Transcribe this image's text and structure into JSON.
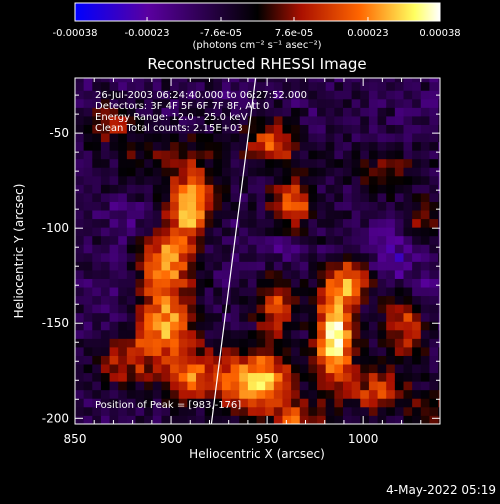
{
  "chart_data": {
    "type": "heatmap",
    "title": "Reconstructed RHESSI Image",
    "xlabel": "Heliocentric X (arcsec)",
    "ylabel": "Heliocentric Y (arcsec)",
    "xlim": [
      850,
      1040
    ],
    "ylim": [
      -203,
      -21
    ],
    "x_ticks": [
      850,
      900,
      950,
      1000
    ],
    "y_ticks": [
      -50,
      -100,
      -150,
      -200
    ],
    "colorbar": {
      "min": -0.00038,
      "max": 0.00038,
      "tick_values": [
        -0.00038,
        -0.00023,
        -7.6e-05,
        7.6e-05,
        0.00023,
        0.00038
      ],
      "tick_labels": [
        "-0.00038",
        "-0.00023",
        "-7.6e-05",
        "7.6e-05",
        "0.00023",
        "0.00038"
      ],
      "units_label": "(photons cm⁻² s⁻¹ asec⁻²)",
      "colors": [
        "#0000ff",
        "#5a00a0",
        "#000000",
        "#aa1000",
        "#ff6600",
        "#ffff60",
        "#ffffff"
      ]
    },
    "annotations": [
      "26-Jul-2003 06:24:40.000 to 06:27:52.000",
      "Detectors: 3F 4F 5F 6F 7F 8F, Att 0",
      "Energy Range: 12.0 - 25.0 keV",
      "Clean    Total counts: 2.15E+03"
    ],
    "peak_label": "Position of Peak = [983,-176]",
    "peak": [
      983,
      -176
    ],
    "limb_line": [
      [
        921,
        -203
      ],
      [
        944,
        -21
      ]
    ],
    "sources": [
      {
        "x": 900,
        "y": -62,
        "sx": 22,
        "sy": 12,
        "a": 0.3
      },
      {
        "x": 910,
        "y": -88,
        "sx": 8,
        "sy": 11,
        "a": 0.85
      },
      {
        "x": 898,
        "y": -115,
        "sx": 10,
        "sy": 12,
        "a": 0.7
      },
      {
        "x": 895,
        "y": -150,
        "sx": 13,
        "sy": 15,
        "a": 0.75
      },
      {
        "x": 912,
        "y": -180,
        "sx": 12,
        "sy": 10,
        "a": 0.55
      },
      {
        "x": 875,
        "y": -170,
        "sx": 10,
        "sy": 10,
        "a": 0.45
      },
      {
        "x": 945,
        "y": -180,
        "sx": 13,
        "sy": 12,
        "a": 0.85
      },
      {
        "x": 955,
        "y": -140,
        "sx": 8,
        "sy": 12,
        "a": 0.55
      },
      {
        "x": 963,
        "y": -88,
        "sx": 8,
        "sy": 10,
        "a": 0.65
      },
      {
        "x": 953,
        "y": -55,
        "sx": 9,
        "sy": 9,
        "a": 0.55
      },
      {
        "x": 985,
        "y": -158,
        "sx": 7,
        "sy": 18,
        "a": 1.0
      },
      {
        "x": 993,
        "y": -128,
        "sx": 9,
        "sy": 8,
        "a": 0.6
      },
      {
        "x": 1008,
        "y": -185,
        "sx": 10,
        "sy": 9,
        "a": 0.55
      },
      {
        "x": 1022,
        "y": -150,
        "sx": 8,
        "sy": 13,
        "a": 0.55
      },
      {
        "x": 1010,
        "y": -70,
        "sx": 14,
        "sy": 8,
        "a": 0.35
      },
      {
        "x": 1030,
        "y": -95,
        "sx": 8,
        "sy": 8,
        "a": 0.3
      },
      {
        "x": 868,
        "y": -45,
        "sx": 8,
        "sy": 7,
        "a": 0.4
      },
      {
        "x": 965,
        "y": -200,
        "sx": 10,
        "sy": 6,
        "a": 0.5
      },
      {
        "x": 1035,
        "y": -195,
        "sx": 7,
        "sy": 7,
        "a": 0.4
      }
    ],
    "negative_regions": [
      {
        "x": 878,
        "y": -148,
        "sx": 7,
        "sy": 14,
        "a": 0.75
      },
      {
        "x": 1015,
        "y": -115,
        "sx": 7,
        "sy": 12,
        "a": 0.7
      },
      {
        "x": 1032,
        "y": -135,
        "sx": 5,
        "sy": 10,
        "a": 0.5
      },
      {
        "x": 958,
        "y": -110,
        "sx": 8,
        "sy": 8,
        "a": 0.35
      },
      {
        "x": 880,
        "y": -95,
        "sx": 7,
        "sy": 8,
        "a": 0.45
      }
    ]
  },
  "footer": {
    "timestamp": "4-May-2022 05:19"
  }
}
